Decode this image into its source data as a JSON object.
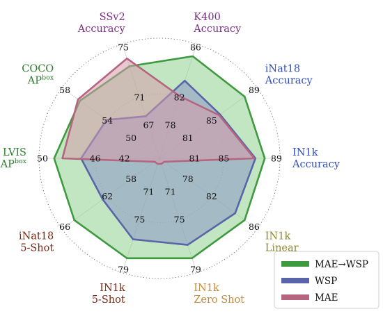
{
  "chart_data": {
    "type": "radar",
    "axes": [
      {
        "line1": "K400",
        "line2": "Accuracy",
        "color": "#7b2d86",
        "ticks": [
          "78",
          "82",
          "86"
        ]
      },
      {
        "line1": "iNat18",
        "line2": "Accuracy",
        "color": "#2f4fbf",
        "ticks": [
          "81",
          "85",
          "89"
        ]
      },
      {
        "line1": "IN1k",
        "line2": "Accuracy",
        "color": "#2f4fbf",
        "ticks": [
          "81",
          "85",
          "89"
        ]
      },
      {
        "line1": "IN1k",
        "line2": "Linear",
        "color": "#8b8a2c",
        "ticks": [
          "78",
          "82",
          "86"
        ]
      },
      {
        "line1": "IN1k",
        "line2": "Zero Shot",
        "color": "#c58a3a",
        "ticks": [
          "71",
          "75",
          "79"
        ]
      },
      {
        "line1": "IN1k",
        "line2": "5-Shot",
        "color": "#7a2a14",
        "ticks": [
          "71",
          "75",
          "79"
        ]
      },
      {
        "line1": "iNat18",
        "line2": "5-Shot",
        "color": "#7a2a14",
        "ticks": [
          "58",
          "62",
          "66"
        ]
      },
      {
        "line1": "LVIS",
        "line2": "AP",
        "line2_sup": "box",
        "color": "#2e7d32",
        "ticks": [
          "42",
          "46",
          "50"
        ]
      },
      {
        "line1": "COCO",
        "line2": "AP",
        "line2_sup": "box",
        "color": "#2e7d32",
        "ticks": [
          "50",
          "54",
          "58"
        ]
      },
      {
        "line1": "SSv2",
        "line2": "Accuracy",
        "color": "#7b2d86",
        "ticks": [
          "67",
          "71",
          "75"
        ]
      }
    ],
    "series": [
      {
        "name": "MAE→WSP",
        "color": "#3e9a3e",
        "fill": "#8fd18f",
        "values": [
          0.92,
          0.9,
          0.9,
          0.9,
          0.9,
          0.9,
          0.9,
          0.9,
          0.84,
          0.83
        ]
      },
      {
        "name": "WSP",
        "color": "#5a64a8",
        "fill": "#8d96c9",
        "values": [
          0.7,
          0.64,
          0.82,
          0.8,
          0.78,
          0.73,
          0.6,
          0.67,
          0.56,
          0.38
        ]
      },
      {
        "name": "MAE",
        "color": "#b5657e",
        "fill": "#d59aab",
        "values": [
          0.56,
          0.63,
          0.81,
          0.05,
          0.05,
          0.05,
          0.05,
          0.83,
          0.86,
          0.9
        ]
      }
    ],
    "legend_position": "bottom-right",
    "grid": "dotted-outer-circle"
  }
}
